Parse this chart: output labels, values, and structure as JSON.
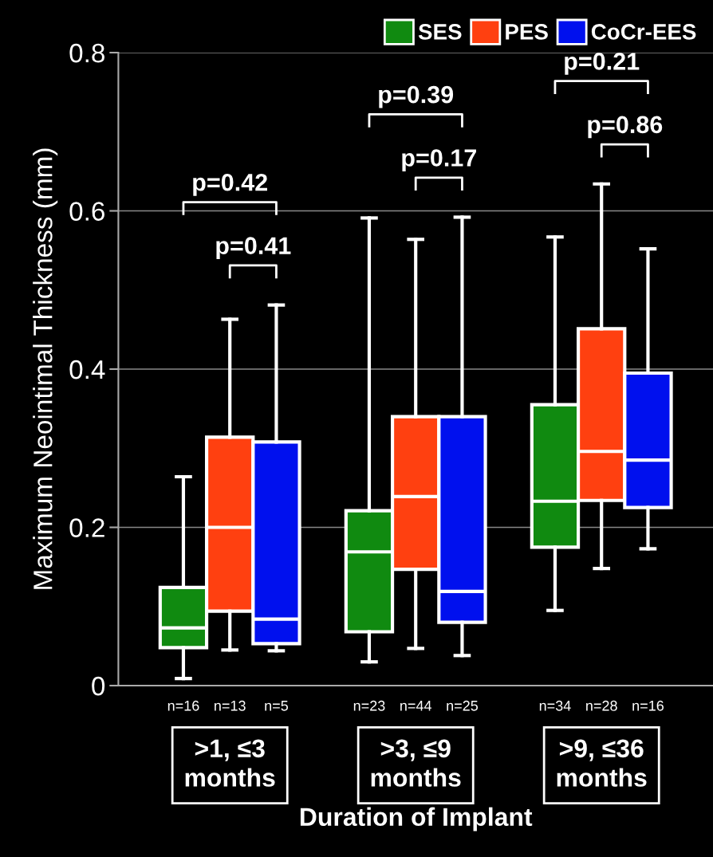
{
  "chart_data": {
    "type": "box",
    "ylabel": "Maximum Neointimal Thickness (mm)",
    "xlabel": "Duration of Implant",
    "categories": [
      ">1, ≤3\nmonths",
      ">3, ≤9\nmonths",
      ">9, ≤36\nmonths"
    ],
    "ylim": [
      0,
      0.8
    ],
    "yticks": [
      0,
      0.2,
      0.4,
      0.6,
      0.8
    ],
    "grid": "y",
    "legend": "top right",
    "series": [
      {
        "name": "SES",
        "color": "#108a10",
        "boxes": [
          {
            "low": 0.009,
            "q1": 0.048,
            "median": 0.073,
            "q3": 0.124,
            "high": 0.264
          },
          {
            "low": 0.03,
            "q1": 0.068,
            "median": 0.169,
            "q3": 0.221,
            "high": 0.591
          },
          {
            "low": 0.095,
            "q1": 0.175,
            "median": 0.233,
            "q3": 0.355,
            "high": 0.567
          }
        ]
      },
      {
        "name": "PES",
        "color": "#ff4010",
        "boxes": [
          {
            "low": 0.045,
            "q1": 0.094,
            "median": 0.2,
            "q3": 0.314,
            "high": 0.463
          },
          {
            "low": 0.047,
            "q1": 0.147,
            "median": 0.239,
            "q3": 0.34,
            "high": 0.564
          },
          {
            "low": 0.148,
            "q1": 0.234,
            "median": 0.296,
            "q3": 0.451,
            "high": 0.634
          }
        ]
      },
      {
        "name": "CoCr-EES",
        "color": "#0010ee",
        "boxes": [
          {
            "low": 0.044,
            "q1": 0.053,
            "median": 0.084,
            "q3": 0.308,
            "high": 0.481
          },
          {
            "low": 0.038,
            "q1": 0.08,
            "median": 0.119,
            "q3": 0.34,
            "high": 0.592
          },
          {
            "low": 0.173,
            "q1": 0.225,
            "median": 0.285,
            "q3": 0.395,
            "high": 0.552
          }
        ]
      }
    ],
    "annotations": [
      "n=16",
      "n=13",
      "n=5",
      "n=23",
      "n=44",
      "n=25",
      "n=34",
      "n=28",
      "n=16",
      "p=0.42",
      "p=0.41",
      "p=0.39",
      "p=0.17",
      "p=0.21",
      "p=0.86"
    ]
  }
}
